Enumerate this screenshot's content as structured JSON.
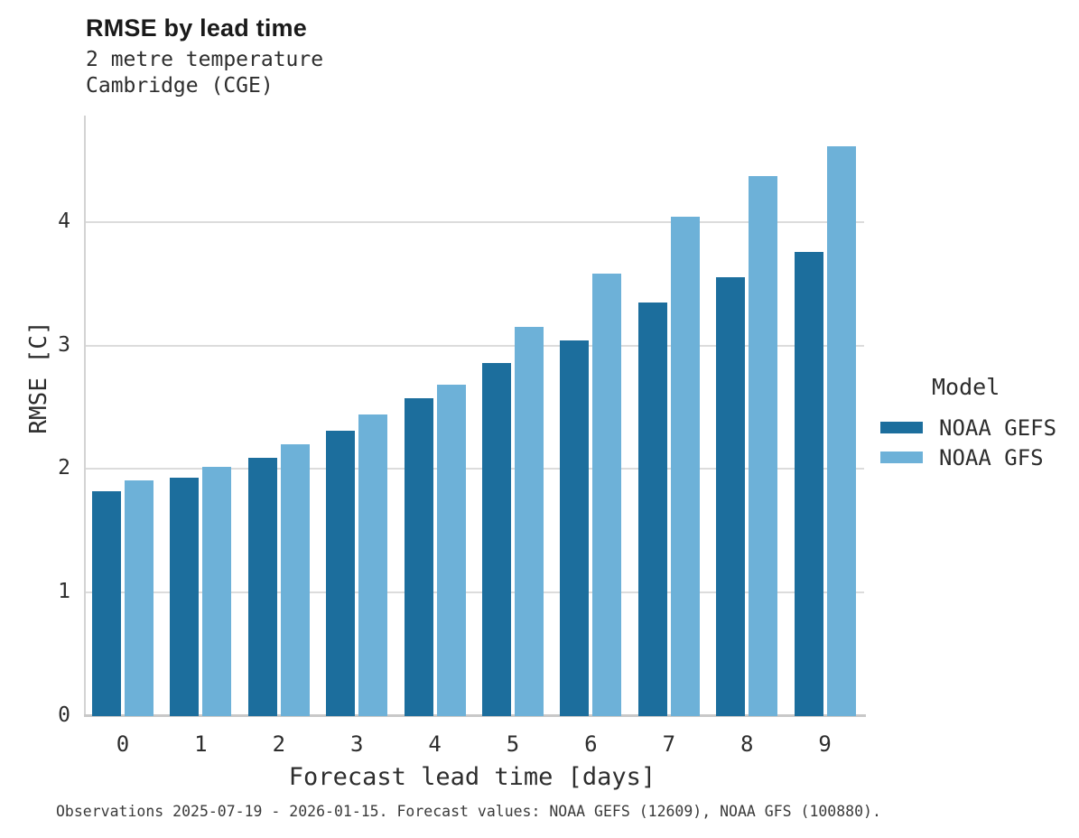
{
  "chart_data": {
    "type": "bar",
    "title": "RMSE by lead time",
    "subtitle": [
      "2 metre temperature",
      "Cambridge (CGE)"
    ],
    "xlabel": "Forecast lead time [days]",
    "ylabel": "RMSE [C]",
    "categories": [
      "0",
      "1",
      "2",
      "3",
      "4",
      "5",
      "6",
      "7",
      "8",
      "9"
    ],
    "series": [
      {
        "name": "NOAA GEFS",
        "color": "#1c6e9d",
        "values": [
          1.82,
          1.93,
          2.09,
          2.31,
          2.57,
          2.86,
          3.04,
          3.35,
          3.55,
          3.76
        ]
      },
      {
        "name": "NOAA GFS",
        "color": "#6db1d8",
        "values": [
          1.91,
          2.02,
          2.2,
          2.44,
          2.68,
          3.15,
          3.58,
          4.04,
          4.37,
          4.61
        ]
      }
    ],
    "ylim": [
      0,
      4.86
    ],
    "yticks": [
      0,
      1,
      2,
      3,
      4
    ],
    "grid": "horizontal",
    "legend": {
      "title": "Model",
      "position": "right"
    },
    "caption": "Observations 2025-07-19 - 2026-01-15. Forecast values: NOAA GEFS (12609), NOAA GFS (100880)."
  }
}
